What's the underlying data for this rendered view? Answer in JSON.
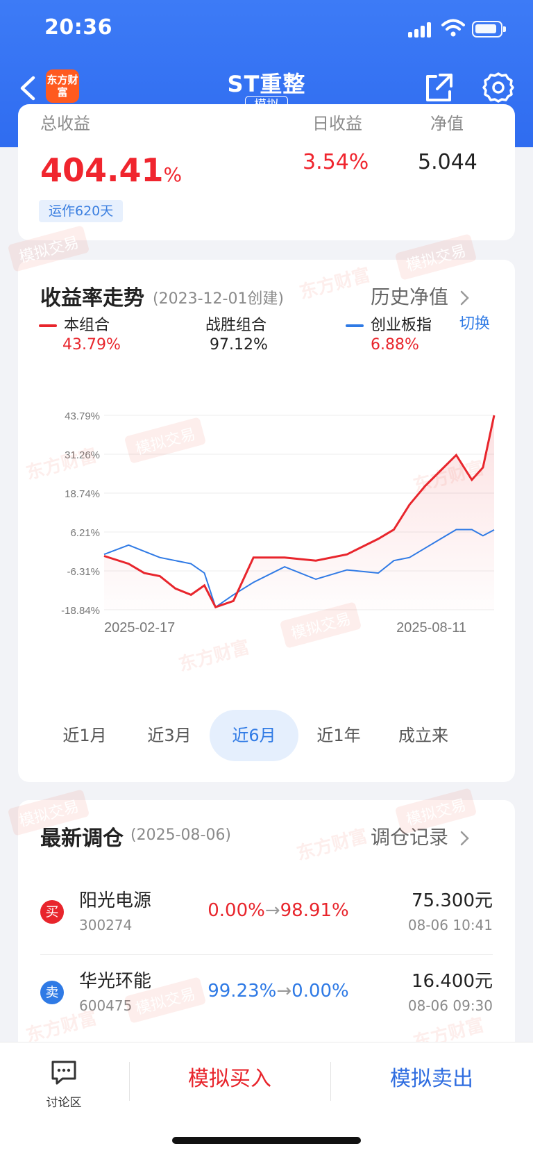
{
  "status": {
    "time": "20:36"
  },
  "nav": {
    "logo_text": "东方财富",
    "title": "ST重整",
    "badge": "模拟"
  },
  "summary": {
    "total_label": "总收益",
    "total_value": "404.41",
    "total_unit": "%",
    "daily_label": "日收益",
    "daily_value": "3.54%",
    "nav_label": "净值",
    "nav_value": "5.044",
    "days_tag": "运作620天"
  },
  "trend": {
    "title": "收益率走势",
    "subtitle": "(2023-12-01创建)",
    "history_link": "历史净值",
    "switch_label": "切换",
    "legend": [
      {
        "name": "本组合",
        "value": "43.79%",
        "color": "#e8252c"
      },
      {
        "name": "战胜组合",
        "value": "97.12%",
        "color": "#222222"
      },
      {
        "name": "创业板指",
        "value": "6.88%",
        "color": "#2f7ae5"
      }
    ]
  },
  "chart_data": {
    "type": "line",
    "yticks": [
      "43.79%",
      "31.26%",
      "18.74%",
      "6.21%",
      "-6.31%",
      "-18.84%"
    ],
    "ylim": [
      -18.84,
      43.79
    ],
    "xlim": [
      "2025-02-17",
      "2025-08-11"
    ],
    "xticks": [
      "2025-02-17",
      "2025-08-11"
    ],
    "x": [
      "2025-02-17",
      "2025-02-28",
      "2025-03-07",
      "2025-03-14",
      "2025-03-21",
      "2025-03-28",
      "2025-04-03",
      "2025-04-08",
      "2025-04-16",
      "2025-04-25",
      "2025-05-09",
      "2025-05-23",
      "2025-06-06",
      "2025-06-20",
      "2025-06-27",
      "2025-07-04",
      "2025-07-11",
      "2025-07-18",
      "2025-07-25",
      "2025-08-01",
      "2025-08-06",
      "2025-08-11"
    ],
    "series": [
      {
        "name": "本组合",
        "color": "#e8252c",
        "values": [
          -1.5,
          -4,
          -7,
          -8,
          -12,
          -14,
          -11,
          -18,
          -16,
          -2,
          -2,
          -3,
          -1,
          4,
          7,
          15,
          21,
          26,
          31,
          23,
          27,
          43.8
        ]
      },
      {
        "name": "创业板指",
        "color": "#2f7ae5",
        "values": [
          -1,
          2,
          0,
          -2,
          -3,
          -4,
          -7,
          -18,
          -14,
          -10,
          -5,
          -9,
          -6,
          -7,
          -3,
          -2,
          1,
          4,
          7,
          7,
          5,
          6.9
        ]
      }
    ],
    "grid": true,
    "fill_under": "本组合"
  },
  "periods": {
    "items": [
      "近1月",
      "近3月",
      "近6月",
      "近1年",
      "成立来"
    ],
    "active": "近6月"
  },
  "trades": {
    "title": "最新调仓",
    "date": "(2025-08-06)",
    "record_link": "调仓记录",
    "rows": [
      {
        "action": "买",
        "action_color": "#e8252c",
        "name": "阳光电源",
        "code": "300274",
        "from": "0.00%",
        "arrow": "→",
        "to": "98.91%",
        "change_color": "#e8252c",
        "price": "75.300元",
        "time": "08-06 10:41"
      },
      {
        "action": "卖",
        "action_color": "#2f7ae5",
        "name": "华光环能",
        "code": "600475",
        "from": "99.23%",
        "arrow": "→",
        "to": "0.00%",
        "change_color": "#2f7ae5",
        "price": "16.400元",
        "time": "08-06 09:30"
      }
    ]
  },
  "bottom": {
    "discuss_label": "讨论区",
    "buy_label": "模拟买入",
    "sell_label": "模拟卖出"
  },
  "watermark": {
    "brand": "东方财富",
    "tag": "模拟交易"
  }
}
